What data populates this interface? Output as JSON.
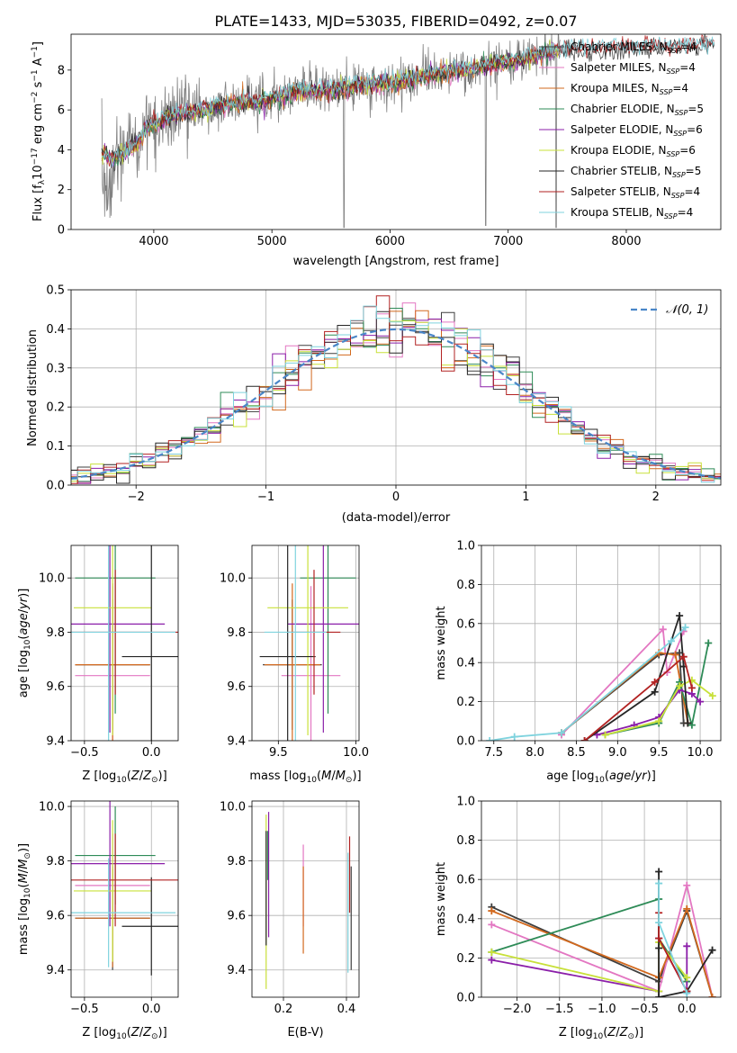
{
  "figure_title": "PLATE=1433, MJD=53035, FIBERID=0492, z=0.07",
  "colors": {
    "Chabrier MILES": "#3f3f3f",
    "Salpeter MILES": "#e377c2",
    "Kroupa MILES": "#d2691e",
    "Chabrier ELODIE": "#2e8b57",
    "Salpeter ELODIE": "#8b1fa9",
    "Kroupa ELODIE": "#c8e03a",
    "Chabrier STELIB": "#262626",
    "Salpeter STELIB": "#b22222",
    "Kroupa STELIB": "#7fd3de",
    "data": "#808080",
    "gaussian": "#4a86c8"
  },
  "legend_labels": [
    {
      "name": "Chabrier MILES",
      "label": "Chabrier MILES, N",
      "n": "=4"
    },
    {
      "name": "Salpeter MILES",
      "label": "Salpeter MILES, N",
      "n": "=4"
    },
    {
      "name": "Kroupa MILES",
      "label": "Kroupa MILES, N",
      "n": "=4"
    },
    {
      "name": "Chabrier ELODIE",
      "label": "Chabrier ELODIE, N",
      "n": "=5"
    },
    {
      "name": "Salpeter ELODIE",
      "label": "Salpeter ELODIE, N",
      "n": "=6"
    },
    {
      "name": "Kroupa ELODIE",
      "label": "Kroupa ELODIE, N",
      "n": "=6"
    },
    {
      "name": "Chabrier STELIB",
      "label": "Chabrier STELIB, N",
      "n": "=5"
    },
    {
      "name": "Salpeter STELIB",
      "label": "Salpeter STELIB, N",
      "n": "=4"
    },
    {
      "name": "Kroupa STELIB",
      "label": "Kroupa STELIB, N",
      "n": "=4"
    }
  ],
  "legend_subscript": "SSP",
  "chart_data": [
    {
      "id": "spectrum",
      "type": "line",
      "xlabel": "wavelength [Angstrom, rest frame]",
      "ylabel": "Flux [f_λ 10^-17 erg cm^-2 s^-1 A^-1]",
      "xlim": [
        3300,
        8800
      ],
      "ylim": [
        0,
        9.8
      ],
      "xticks": [
        4000,
        5000,
        6000,
        7000,
        8000
      ],
      "yticks": [
        0,
        2,
        4,
        6,
        8
      ],
      "continuum": {
        "x": [
          3560,
          3650,
          3700,
          3850,
          3950,
          4050,
          4200,
          4400,
          4600,
          4900,
          5200,
          5500,
          5800,
          6100,
          6400,
          6700,
          7000,
          7200,
          7420
        ],
        "y": [
          3.8,
          3.5,
          3.7,
          4.3,
          5.2,
          5.4,
          5.8,
          6.0,
          6.3,
          6.4,
          6.9,
          7.0,
          7.3,
          7.4,
          7.8,
          8.1,
          8.4,
          8.7,
          9.0
        ]
      },
      "model_x_range": [
        3560,
        7440
      ],
      "model_extended_x_range": [
        7440,
        8750
      ]
    },
    {
      "id": "residuals",
      "type": "bar",
      "xlabel": "(data-model)/error",
      "ylabel": "Normed distribution",
      "xlim": [
        -2.5,
        2.5
      ],
      "ylim": [
        0,
        0.5
      ],
      "xticks": [
        -2,
        -1,
        0,
        1,
        2
      ],
      "yticks": [
        0.0,
        0.1,
        0.2,
        0.3,
        0.4,
        0.5
      ],
      "bin_width": 0.1,
      "reference_curve": "N(0,1)",
      "legend_text": "𝒩(0, 1)"
    },
    {
      "id": "age_vs_Z",
      "type": "scatter",
      "xlabel": "Z [log10(Z/Z⊙)]",
      "ylabel": "age  [log10(age/yr)]",
      "xlim": [
        -0.6,
        0.2
      ],
      "ylim": [
        9.4,
        10.12
      ],
      "xticks": [
        -0.5,
        0.0
      ],
      "yticks": [
        9.4,
        9.6,
        9.8,
        10.0
      ],
      "points": [
        {
          "series": "Chabrier MILES",
          "x": -0.29,
          "y": 9.68,
          "xerr": 0.28,
          "yerr": 0.24
        },
        {
          "series": "Salpeter MILES",
          "x": -0.29,
          "y": 9.64,
          "xerr": 0.28,
          "yerr": 0.33
        },
        {
          "series": "Kroupa MILES",
          "x": -0.29,
          "y": 9.68,
          "xerr": 0.28,
          "yerr": 0.3
        },
        {
          "series": "Chabrier ELODIE",
          "x": -0.27,
          "y": 10.0,
          "xerr": 0.3,
          "yerr": 0.5
        },
        {
          "series": "Salpeter ELODIE",
          "x": -0.31,
          "y": 9.83,
          "xerr": 0.41,
          "yerr": 0.4
        },
        {
          "series": "Kroupa ELODIE",
          "x": -0.29,
          "y": 9.89,
          "xerr": 0.29,
          "yerr": 0.47
        },
        {
          "series": "Chabrier STELIB",
          "x": 0.0,
          "y": 9.71,
          "xerr": 0.22,
          "yerr": 0.41
        },
        {
          "series": "Salpeter STELIB",
          "x": -0.27,
          "y": 9.8,
          "xerr": 0.47,
          "yerr": 0.23
        },
        {
          "series": "Kroupa STELIB",
          "x": -0.32,
          "y": 9.8,
          "xerr": 0.5,
          "yerr": 0.4
        }
      ]
    },
    {
      "id": "age_vs_mass",
      "type": "scatter",
      "xlabel": "mass [log10(M/M⊙)]",
      "ylabel": "",
      "xlim": [
        9.33,
        10.02
      ],
      "ylim": [
        9.4,
        10.12
      ],
      "xticks": [
        9.5,
        10.0
      ],
      "yticks": [
        9.4,
        9.6,
        9.8,
        10.0
      ],
      "points": [
        {
          "series": "Chabrier MILES",
          "x": 9.59,
          "y": 9.68,
          "xerr": 0.19,
          "yerr": 0.24
        },
        {
          "series": "Salpeter MILES",
          "x": 9.71,
          "y": 9.64,
          "xerr": 0.19,
          "yerr": 0.33
        },
        {
          "series": "Kroupa MILES",
          "x": 9.59,
          "y": 9.68,
          "xerr": 0.18,
          "yerr": 0.3
        },
        {
          "series": "Chabrier ELODIE",
          "x": 9.82,
          "y": 10.0,
          "xerr": 0.18,
          "yerr": 0.5
        },
        {
          "series": "Salpeter ELODIE",
          "x": 9.79,
          "y": 9.83,
          "xerr": 0.23,
          "yerr": 0.4
        },
        {
          "series": "Kroupa ELODIE",
          "x": 9.69,
          "y": 9.89,
          "xerr": 0.26,
          "yerr": 0.47
        },
        {
          "series": "Chabrier STELIB",
          "x": 9.56,
          "y": 9.71,
          "xerr": 0.18,
          "yerr": 0.41
        },
        {
          "series": "Salpeter STELIB",
          "x": 9.73,
          "y": 9.8,
          "xerr": 0.17,
          "yerr": 0.23
        },
        {
          "series": "Kroupa STELIB",
          "x": 9.61,
          "y": 9.8,
          "xerr": 0.2,
          "yerr": 0.4
        }
      ]
    },
    {
      "id": "weight_vs_age",
      "type": "line",
      "xlabel": "age  [log10(age/yr)]",
      "ylabel": "mass weight",
      "xlim": [
        7.35,
        10.25
      ],
      "ylim": [
        0,
        1.0
      ],
      "xticks": [
        7.5,
        8.0,
        8.5,
        9.0,
        9.5,
        10.0
      ],
      "yticks": [
        0.0,
        0.2,
        0.4,
        0.6,
        0.8,
        1.0
      ],
      "series": [
        {
          "name": "Chabrier MILES",
          "x": [
            8.32,
            9.5,
            9.75,
            9.8
          ],
          "y": [
            0.04,
            0.44,
            0.45,
            0.09
          ]
        },
        {
          "name": "Salpeter MILES",
          "x": [
            8.32,
            9.55,
            9.6,
            9.8
          ],
          "y": [
            0.03,
            0.57,
            0.35,
            0.56
          ]
        },
        {
          "name": "Kroupa MILES",
          "x": [
            8.32,
            9.5,
            9.7,
            9.85
          ],
          "y": [
            0.04,
            0.45,
            0.44,
            0.09
          ]
        },
        {
          "name": "Chabrier ELODIE",
          "x": [
            8.85,
            9.5,
            9.75,
            9.9,
            10.1
          ],
          "y": [
            0.03,
            0.09,
            0.3,
            0.08,
            0.5
          ]
        },
        {
          "name": "Salpeter ELODIE",
          "x": [
            8.75,
            9.2,
            9.5,
            9.75,
            9.9,
            10.0
          ],
          "y": [
            0.03,
            0.08,
            0.12,
            0.26,
            0.24,
            0.2
          ]
        },
        {
          "name": "Kroupa ELODIE",
          "x": [
            8.85,
            9.5,
            9.75,
            9.9,
            10.15
          ],
          "y": [
            0.03,
            0.1,
            0.28,
            0.31,
            0.23
          ]
        },
        {
          "name": "Chabrier STELIB",
          "x": [
            8.6,
            9.45,
            9.75,
            9.8,
            9.85
          ],
          "y": [
            0.0,
            0.25,
            0.64,
            0.38,
            0.09
          ]
        },
        {
          "name": "Salpeter STELIB",
          "x": [
            8.6,
            9.45,
            9.8,
            9.9
          ],
          "y": [
            0.0,
            0.3,
            0.43,
            0.27
          ]
        },
        {
          "name": "Kroupa STELIB",
          "x": [
            7.45,
            7.75,
            8.32,
            9.65,
            9.82
          ],
          "y": [
            0.0,
            0.02,
            0.04,
            0.51,
            0.58
          ]
        }
      ]
    },
    {
      "id": "mass_vs_Z",
      "type": "scatter",
      "xlabel": "Z [log10(Z/Z⊙)]",
      "ylabel": "mass [log10(M/M⊙)]",
      "xlim": [
        -0.6,
        0.2
      ],
      "ylim": [
        9.3,
        10.02
      ],
      "xticks": [
        -0.5,
        0.0
      ],
      "yticks": [
        9.4,
        9.6,
        9.8,
        10.0
      ],
      "points": [
        {
          "series": "Chabrier MILES",
          "x": -0.29,
          "y": 9.59,
          "xerr": 0.28,
          "yerr": 0.19
        },
        {
          "series": "Salpeter MILES",
          "x": -0.29,
          "y": 9.71,
          "xerr": 0.28,
          "yerr": 0.19
        },
        {
          "series": "Kroupa MILES",
          "x": -0.29,
          "y": 9.59,
          "xerr": 0.28,
          "yerr": 0.18
        },
        {
          "series": "Chabrier ELODIE",
          "x": -0.27,
          "y": 9.82,
          "xerr": 0.3,
          "yerr": 0.18
        },
        {
          "series": "Salpeter ELODIE",
          "x": -0.31,
          "y": 9.79,
          "xerr": 0.41,
          "yerr": 0.23
        },
        {
          "series": "Kroupa ELODIE",
          "x": -0.29,
          "y": 9.69,
          "xerr": 0.29,
          "yerr": 0.26
        },
        {
          "series": "Chabrier STELIB",
          "x": 0.0,
          "y": 9.56,
          "xerr": 0.22,
          "yerr": 0.18
        },
        {
          "series": "Salpeter STELIB",
          "x": -0.27,
          "y": 9.73,
          "xerr": 0.47,
          "yerr": 0.17
        },
        {
          "series": "Kroupa STELIB",
          "x": -0.32,
          "y": 9.61,
          "xerr": 0.5,
          "yerr": 0.2
        }
      ]
    },
    {
      "id": "mass_vs_ebv",
      "type": "scatter",
      "xlabel": "E(B-V)",
      "ylabel": "",
      "xlim": [
        0.1,
        0.44
      ],
      "ylim": [
        9.3,
        10.02
      ],
      "xticks": [
        0.2,
        0.4
      ],
      "yticks": [
        9.4,
        9.6,
        9.8,
        10.0
      ],
      "points": [
        {
          "series": "Chabrier MILES",
          "x": 0.415,
          "y": 9.59,
          "yerr": 0.19
        },
        {
          "series": "Salpeter MILES",
          "x": 0.263,
          "y": 9.71,
          "yerr": 0.15
        },
        {
          "series": "Kroupa MILES",
          "x": 0.263,
          "y": 9.62,
          "yerr": 0.16
        },
        {
          "series": "Chabrier ELODIE",
          "x": 0.15,
          "y": 9.82,
          "yerr": 0.09
        },
        {
          "series": "Salpeter ELODIE",
          "x": 0.153,
          "y": 9.75,
          "yerr": 0.23
        },
        {
          "series": "Kroupa ELODIE",
          "x": 0.145,
          "y": 9.65,
          "yerr": 0.32
        },
        {
          "series": "Chabrier STELIB",
          "x": 0.145,
          "y": 9.7,
          "yerr": 0.21
        },
        {
          "series": "Salpeter STELIB",
          "x": 0.41,
          "y": 9.75,
          "yerr": 0.14
        },
        {
          "series": "Kroupa STELIB",
          "x": 0.405,
          "y": 9.61,
          "yerr": 0.22
        }
      ]
    },
    {
      "id": "weight_vs_Z",
      "type": "line",
      "xlabel": "Z [log10(Z/Z⊙)]",
      "ylabel": "mass weight",
      "xlim": [
        -2.42,
        0.4
      ],
      "ylim": [
        0,
        1.0
      ],
      "xticks": [
        -2.0,
        -1.5,
        -1.0,
        -0.5,
        0.0
      ],
      "yticks": [
        0.0,
        0.2,
        0.4,
        0.6,
        0.8,
        1.0
      ],
      "series": [
        {
          "name": "Chabrier MILES",
          "x": [
            -2.3,
            -0.33,
            0.0,
            0.3
          ],
          "y": [
            0.46,
            0.08,
            0.44,
            0.0
          ]
        },
        {
          "name": "Salpeter MILES",
          "x": [
            -2.3,
            -0.33,
            0.0,
            0.3
          ],
          "y": [
            0.37,
            0.03,
            0.57,
            0.0
          ]
        },
        {
          "name": "Kroupa MILES",
          "x": [
            -2.3,
            -0.33,
            0.0,
            0.3
          ],
          "y": [
            0.44,
            0.1,
            0.45,
            0.0
          ]
        },
        {
          "name": "Chabrier ELODIE",
          "x": [
            -2.3,
            -0.33,
            -0.33,
            0.0
          ],
          "y": [
            0.23,
            0.5,
            0.3,
            0.08
          ]
        },
        {
          "name": "Salpeter ELODIE",
          "x": [
            -2.3,
            -0.33,
            -0.33,
            0.0,
            0.0
          ],
          "y": [
            0.19,
            0.03,
            0.3,
            0.03,
            0.26
          ]
        },
        {
          "name": "Kroupa ELODIE",
          "x": [
            -2.3,
            -0.33,
            -0.33,
            0.0
          ],
          "y": [
            0.23,
            0.03,
            0.28,
            0.1
          ]
        },
        {
          "name": "Chabrier STELIB",
          "x": [
            -0.33,
            -0.33,
            -0.33,
            0.0,
            0.3
          ],
          "y": [
            0.64,
            0.25,
            0.0,
            0.03,
            0.24
          ]
        },
        {
          "name": "Salpeter STELIB",
          "x": [
            -0.33,
            -0.33,
            0.0
          ],
          "y": [
            0.43,
            0.3,
            0.03
          ]
        },
        {
          "name": "Kroupa STELIB",
          "x": [
            -0.33,
            -0.33,
            0.0
          ],
          "y": [
            0.58,
            0.38,
            0.02
          ]
        }
      ]
    }
  ]
}
